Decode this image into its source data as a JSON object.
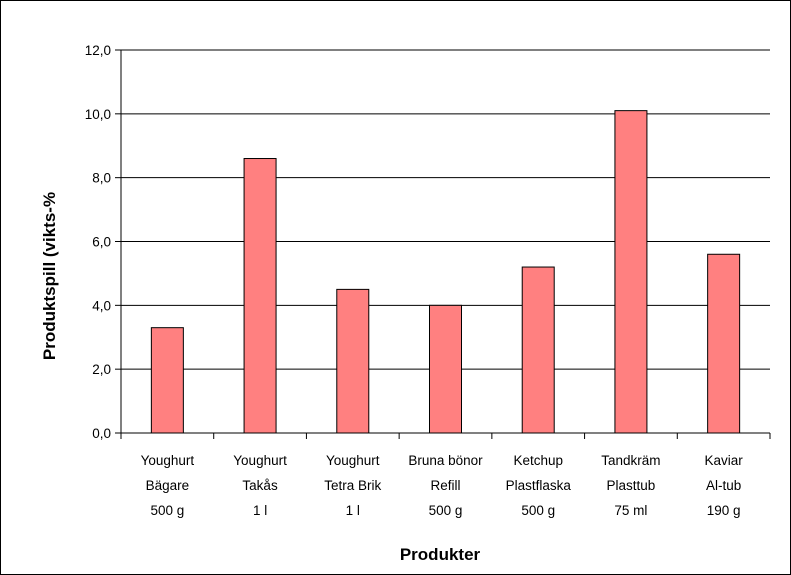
{
  "chart_data": {
    "type": "bar",
    "title": "",
    "xlabel": "Produkter",
    "ylabel": "Produktspill (vikts-%",
    "ylim": [
      0,
      12
    ],
    "y_ticks": [
      "0,0",
      "2,0",
      "4,0",
      "6,0",
      "8,0",
      "10,0",
      "12,0"
    ],
    "y_tick_values": [
      0,
      2,
      4,
      6,
      8,
      10,
      12
    ],
    "grid": true,
    "legend": "none",
    "bar_color": "#ff8080",
    "categories": [
      [
        "Youghurt",
        "Bägare",
        "500 g"
      ],
      [
        "Youghurt",
        "Takås",
        "1 l"
      ],
      [
        "Youghurt",
        "Tetra Brik",
        "1 l"
      ],
      [
        "Bruna bönor",
        "Refill",
        "500 g"
      ],
      [
        "Ketchup",
        "Plastflaska",
        "500 g"
      ],
      [
        "Tandkräm",
        "Plasttub",
        "75 ml"
      ],
      [
        "Kaviar",
        "Al-tub",
        "190 g"
      ]
    ],
    "values": [
      3.3,
      8.6,
      4.5,
      4.0,
      5.2,
      10.1,
      5.6
    ]
  }
}
